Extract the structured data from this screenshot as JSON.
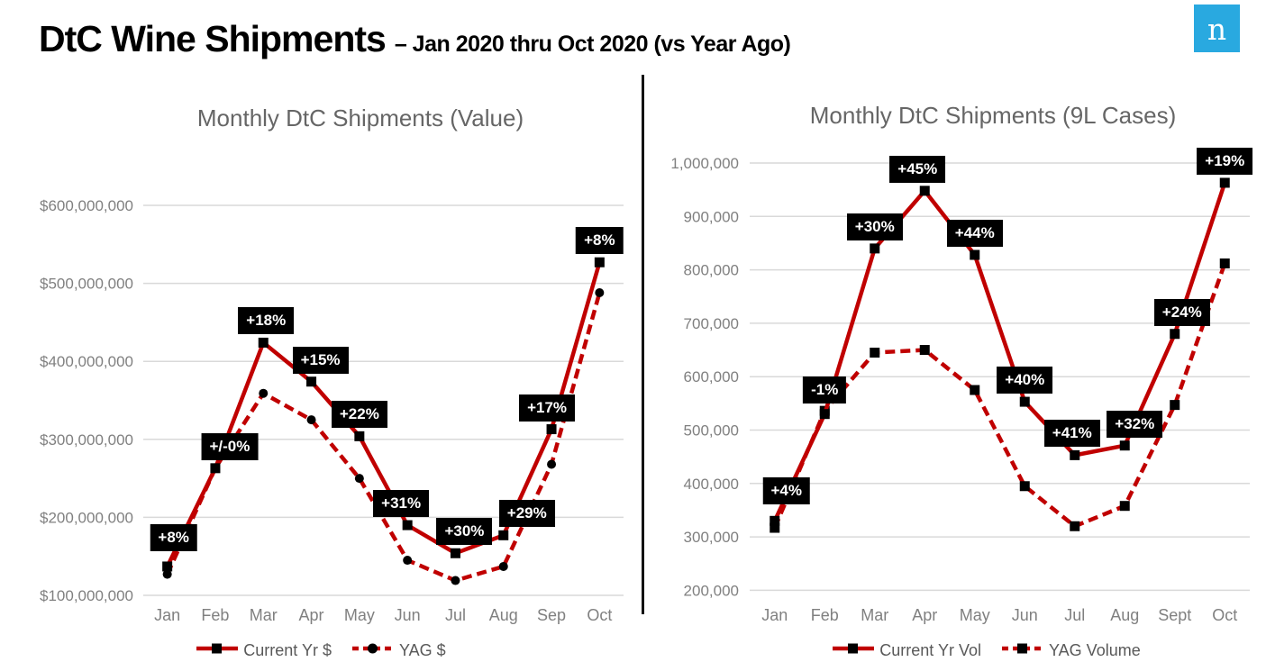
{
  "header": {
    "title": "DtC Wine Shipments",
    "subtitle": "– Jan 2020 thru Oct 2020 (vs Year Ago)"
  },
  "logo": {
    "letter": "n",
    "background": "#29A9E0"
  },
  "colors": {
    "line_red": "#C00000",
    "marker_black": "#000000",
    "gridline": "#D9D9D9",
    "axis_text": "#808080",
    "chart_title": "#666666",
    "label_bg": "#000000",
    "label_text": "#FFFFFF"
  },
  "chart_data": [
    {
      "type": "line",
      "title": "Monthly DtC Shipments (Value)",
      "categories": [
        "Jan",
        "Feb",
        "Mar",
        "Apr",
        "May",
        "Jun",
        "Jul",
        "Aug",
        "Sep",
        "Oct"
      ],
      "ylim": [
        100000000,
        600000000
      ],
      "grid": true,
      "legend_position": "bottom",
      "y_ticks": [
        {
          "label": "$600,000,000",
          "value": 600000000
        },
        {
          "label": "$500,000,000",
          "value": 500000000
        },
        {
          "label": "$400,000,000",
          "value": 400000000
        },
        {
          "label": "$300,000,000",
          "value": 300000000
        },
        {
          "label": "$200,000,000",
          "value": 200000000
        },
        {
          "label": "$100,000,000",
          "value": 100000000
        }
      ],
      "series": [
        {
          "name": "Current Yr $",
          "line": "solid",
          "marker": "square",
          "values": [
            137000000,
            263000000,
            424000000,
            374000000,
            304000000,
            190000000,
            154000000,
            177000000,
            313000000,
            527000000
          ]
        },
        {
          "name": "YAG $",
          "line": "dashed",
          "marker": "circle",
          "values": [
            127000000,
            263000000,
            359000000,
            325000000,
            250000000,
            145000000,
            119000000,
            137000000,
            268000000,
            488000000
          ]
        }
      ],
      "point_labels": [
        "+8%",
        "+/-0%",
        "+18%",
        "+15%",
        "+22%",
        "+31%",
        "+30%",
        "+29%",
        "+17%",
        "+8%"
      ]
    },
    {
      "type": "line",
      "title": "Monthly DtC Shipments (9L Cases)",
      "categories": [
        "Jan",
        "Feb",
        "Mar",
        "Apr",
        "May",
        "Jun",
        "Jul",
        "Aug",
        "Sept",
        "Oct"
      ],
      "ylim": [
        200000,
        1000000
      ],
      "grid": true,
      "legend_position": "bottom",
      "y_ticks": [
        {
          "label": "1,000,000",
          "value": 1000000
        },
        {
          "label": "900,000",
          "value": 900000
        },
        {
          "label": "800,000",
          "value": 800000
        },
        {
          "label": "700,000",
          "value": 700000
        },
        {
          "label": "600,000",
          "value": 600000
        },
        {
          "label": "500,000",
          "value": 500000
        },
        {
          "label": "400,000",
          "value": 400000
        },
        {
          "label": "300,000",
          "value": 300000
        },
        {
          "label": "200,000",
          "value": 200000
        }
      ],
      "series": [
        {
          "name": "Current Yr Vol",
          "line": "solid",
          "marker": "square",
          "values": [
            330000,
            530000,
            840000,
            948000,
            828000,
            553000,
            453000,
            471000,
            680000,
            963000
          ]
        },
        {
          "name": "YAG Volume",
          "line": "dashed",
          "marker": "square",
          "values": [
            317000,
            536000,
            645000,
            650000,
            575000,
            395000,
            320000,
            358000,
            547000,
            812000
          ]
        }
      ],
      "point_labels": [
        "+4%",
        "-1%",
        "+30%",
        "+45%",
        "+44%",
        "+40%",
        "+41%",
        "+32%",
        "+24%",
        "+19%"
      ]
    }
  ]
}
